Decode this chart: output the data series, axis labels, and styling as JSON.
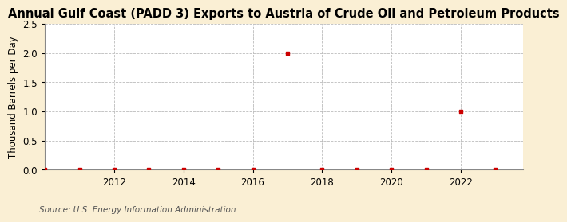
{
  "title": "Annual Gulf Coast (PADD 3) Exports to Austria of Crude Oil and Petroleum Products",
  "ylabel": "Thousand Barrels per Day",
  "source": "Source: U.S. Energy Information Administration",
  "outer_bg_color": "#faefd4",
  "plot_bg_color": "#ffffff",
  "xlim": [
    2010.0,
    2023.8
  ],
  "ylim": [
    0.0,
    2.5
  ],
  "yticks": [
    0.0,
    0.5,
    1.0,
    1.5,
    2.0,
    2.5
  ],
  "xticks": [
    2012,
    2014,
    2016,
    2018,
    2020,
    2022
  ],
  "years": [
    2010,
    2011,
    2012,
    2013,
    2014,
    2015,
    2016,
    2017,
    2018,
    2019,
    2020,
    2021,
    2022,
    2023
  ],
  "values": [
    0.0,
    0.0,
    0.0,
    0.0,
    0.0,
    0.0,
    0.0,
    2.0,
    0.0,
    0.0,
    0.0,
    0.0,
    1.0,
    0.0
  ],
  "marker_color": "#cc0000",
  "marker_size": 3.5,
  "grid_color": "#bbbbbb",
  "title_fontsize": 10.5,
  "label_fontsize": 8.5,
  "tick_fontsize": 8.5,
  "source_fontsize": 7.5
}
